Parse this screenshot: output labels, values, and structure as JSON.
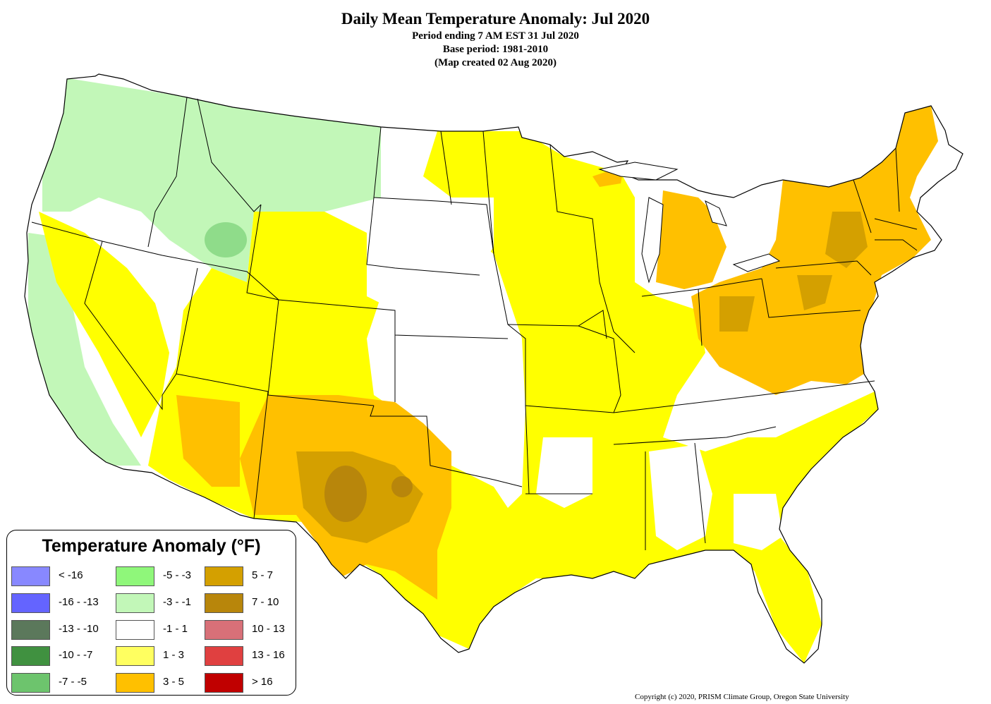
{
  "header": {
    "title": "Daily Mean Temperature Anomaly: Jul 2020",
    "subtitle_1": "Period ending 7 AM EST 31 Jul 2020",
    "subtitle_2": "Base period: 1981-2010",
    "subtitle_3": "(Map created 02 Aug 2020)"
  },
  "legend": {
    "title": "Temperature Anomaly (°F)",
    "items": [
      {
        "label": "< -16",
        "color": "#8888ff"
      },
      {
        "label": "-16 - -13",
        "color": "#6464ff"
      },
      {
        "label": "-13 - -10",
        "color": "#5b785b"
      },
      {
        "label": "-10 - -7",
        "color": "#409140"
      },
      {
        "label": "-7 - -5",
        "color": "#6dc46d"
      },
      {
        "label": "-5 - -3",
        "color": "#8ff77a"
      },
      {
        "label": "-3 - -1",
        "color": "#c2f7b8"
      },
      {
        "label": "-1 - 1",
        "color": "#ffffff"
      },
      {
        "label": "1 - 3",
        "color": "#ffff60"
      },
      {
        "label": "3 - 5",
        "color": "#ffc000"
      },
      {
        "label": "5 - 7",
        "color": "#d4a000"
      },
      {
        "label": "7 - 10",
        "color": "#b8860b"
      },
      {
        "label": "10 - 13",
        "color": "#d87078"
      },
      {
        "label": "13 - 16",
        "color": "#e04040"
      },
      {
        "label": "> 16",
        "color": "#c00000"
      }
    ]
  },
  "map_colors": {
    "neg_light": "#c2f7b8",
    "neg_mid": "#8fdc8a",
    "neutral": "#ffffff",
    "pos_1_3": "#ffff00",
    "pos_3_5": "#ffc000",
    "pos_5_7": "#d4a000",
    "pos_7_10": "#b8860b",
    "borders": "#000000"
  },
  "copyright": "Copyright (c) 2020, PRISM Climate Group, Oregon State University"
}
